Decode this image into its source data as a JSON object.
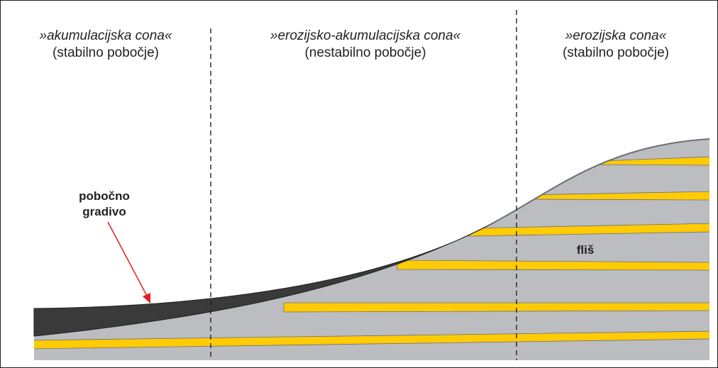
{
  "zones": [
    {
      "title": "»akumulacijska cona«",
      "subtitle": "(stabilno pobočje)"
    },
    {
      "title": "»erozijsko-akumulacijska cona«",
      "subtitle": "(nestabilno pobočje)"
    },
    {
      "title": "»erozijska cona«",
      "subtitle": "(stabilno pobočje)"
    }
  ],
  "labels": {
    "debris_line1": "pobočno",
    "debris_line2": "gradivo",
    "bedrock": "fliš"
  },
  "colors": {
    "bedrock": "#bcbdc0",
    "debris": "#3a3a3a",
    "layers": "#ffcb05",
    "arrow": "#e31e24",
    "outline": "#6d6e71"
  }
}
